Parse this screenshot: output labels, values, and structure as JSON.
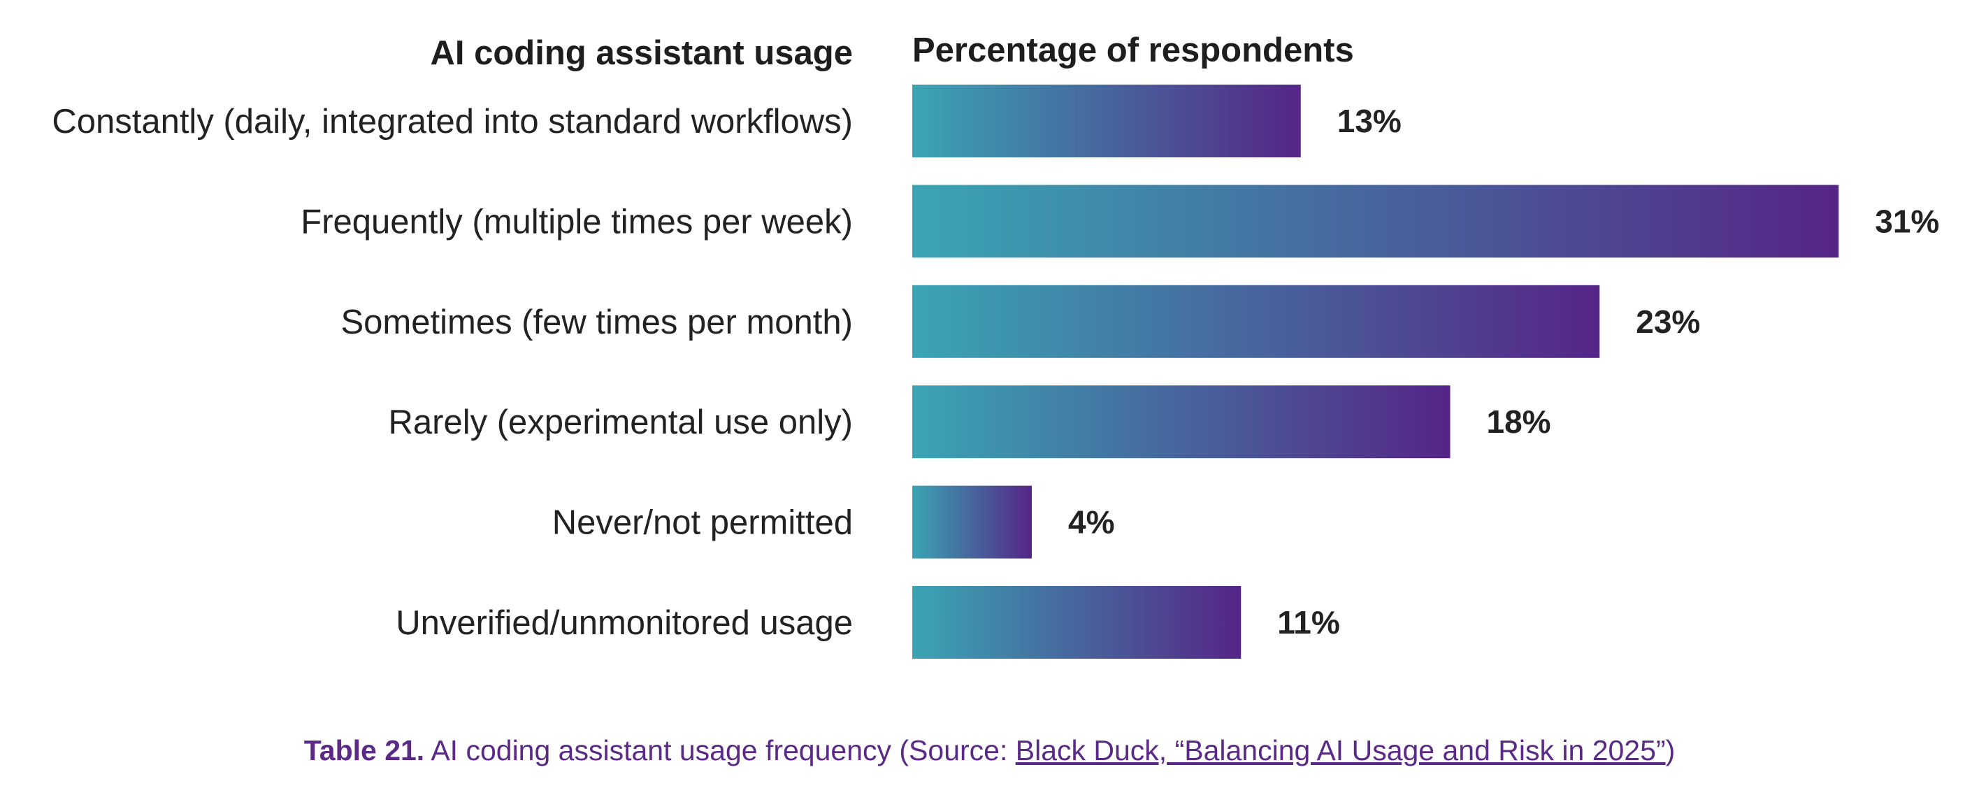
{
  "colors": {
    "bar_gradient_start": "#3aa5b3",
    "bar_gradient_end": "#552587",
    "caption": "#5a2a86",
    "text": "#222222"
  },
  "chart_data": {
    "type": "bar",
    "orientation": "horizontal",
    "category_header": "AI coding assistant usage",
    "value_header": "Percentage of respondents",
    "categories": [
      "Constantly (daily, integrated into standard workflows)",
      "Frequently (multiple times per week)",
      "Sometimes (few times per month)",
      "Rarely (experimental use only)",
      "Never/not permitted",
      "Unverified/unmonitored usage"
    ],
    "values": [
      13,
      31,
      23,
      18,
      4,
      11
    ],
    "value_labels": [
      "13%",
      "31%",
      "23%",
      "18%",
      "4%",
      "11%"
    ],
    "unit": "%",
    "grid": false,
    "legend": "none"
  },
  "caption": {
    "number": "Table 21.",
    "text": " AI coding assistant usage frequency (Source: ",
    "link_text": "Black Duck, “Balancing AI Usage and Risk in 2025”",
    "suffix": ")"
  }
}
